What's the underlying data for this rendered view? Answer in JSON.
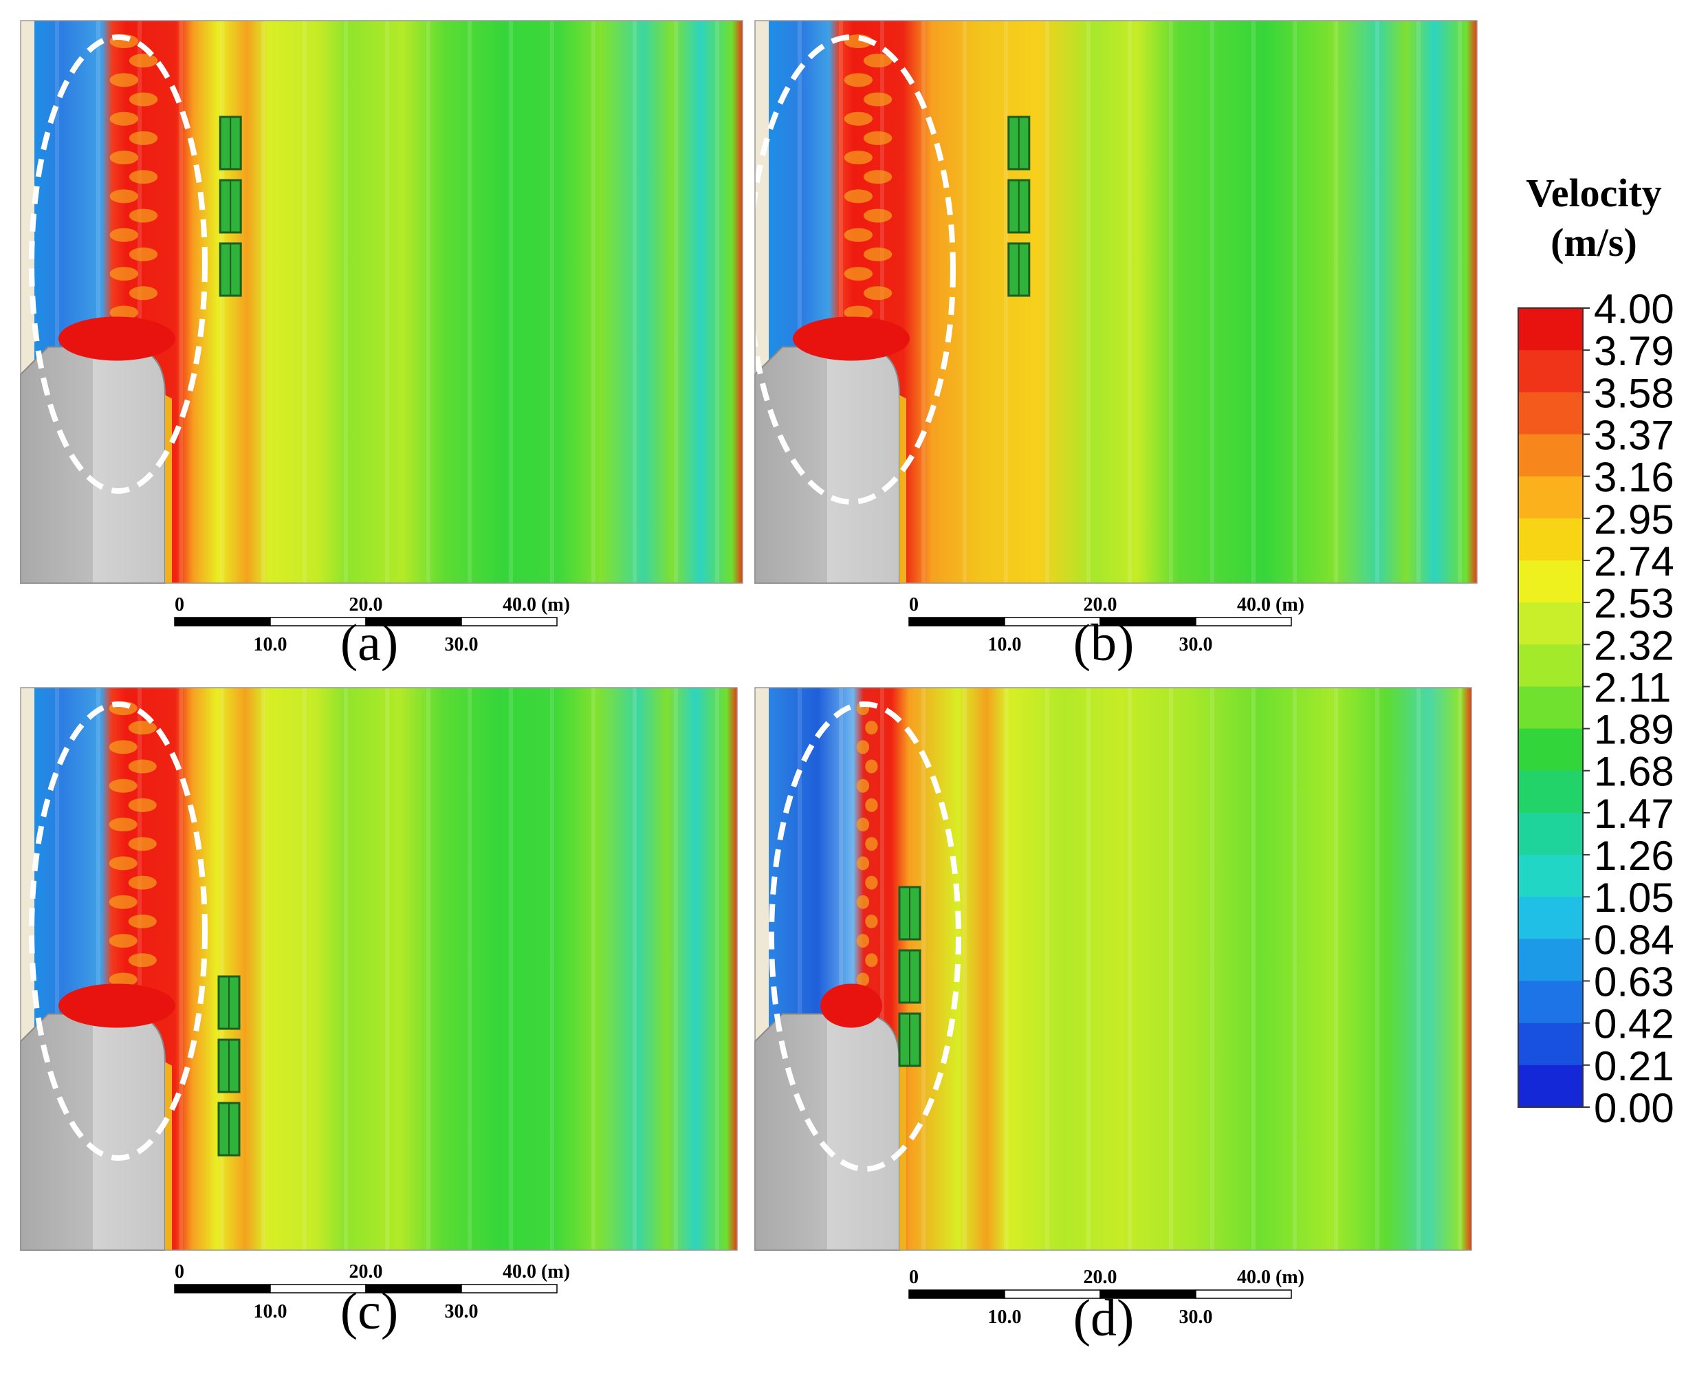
{
  "panels": [
    {
      "id": "a",
      "label": "(a)",
      "structure_layout": "upstream-row",
      "ellipse_side": "left-red"
    },
    {
      "id": "b",
      "label": "(b)",
      "structure_layout": "upstream-row",
      "ellipse_side": "left-red"
    },
    {
      "id": "c",
      "label": "(c)",
      "structure_layout": "downstream-row",
      "ellipse_side": "left-red"
    },
    {
      "id": "d",
      "label": "(d)",
      "structure_layout": "in-zone",
      "ellipse_side": "left-blue"
    }
  ],
  "scale_bar": {
    "top_labels": [
      "0",
      "20.0",
      "40.0 (m)"
    ],
    "bottom_labels": [
      "10.0",
      "30.0"
    ]
  },
  "colorbar": {
    "title_line1": "Velocity",
    "title_line2": "(m/s)",
    "ticks": [
      "4.00",
      "3.79",
      "3.58",
      "3.37",
      "3.16",
      "2.95",
      "2.74",
      "2.53",
      "2.32",
      "2.11",
      "1.89",
      "1.68",
      "1.47",
      "1.26",
      "1.05",
      "0.84",
      "0.63",
      "0.42",
      "0.21",
      "0.00"
    ],
    "colors": [
      "#e8130f",
      "#f0341a",
      "#f45a1c",
      "#f7861c",
      "#fbb11c",
      "#f7d514",
      "#eef11e",
      "#c9ef2a",
      "#a3ea2a",
      "#6fe12e",
      "#32d63a",
      "#22d36a",
      "#1fd49a",
      "#22d6c6",
      "#1fbfe6",
      "#1c9ae8",
      "#1c74e6",
      "#1850e0",
      "#1428d8"
    ]
  }
}
